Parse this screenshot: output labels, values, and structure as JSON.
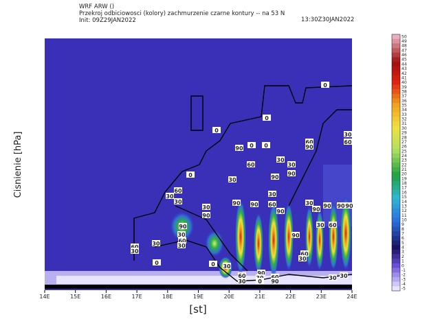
{
  "chart_data": {
    "type": "contour",
    "model": "WRF ARW ()",
    "title": "Przekroj odbiciowosci (kolory) zachmurzenie czarne kontury -- na 53 N",
    "init": "Init: 09Z29JAN2022",
    "valid": "13:30Z30JAN2022",
    "ylabel": "Cisnienie [hPa]",
    "xlabel": "[st]",
    "xlim": [
      14,
      24
    ],
    "xticks": [
      {
        "value": 14,
        "label": "14E"
      },
      {
        "value": 15,
        "label": "15E"
      },
      {
        "value": 16,
        "label": "16E"
      },
      {
        "value": 17,
        "label": "17E"
      },
      {
        "value": 18,
        "label": "18E"
      },
      {
        "value": 19,
        "label": "19E"
      },
      {
        "value": 20,
        "label": "20E"
      },
      {
        "value": 21,
        "label": "21E"
      },
      {
        "value": 22,
        "label": "22E"
      },
      {
        "value": 23,
        "label": "23E"
      },
      {
        "value": 24,
        "label": "24E"
      }
    ],
    "colorbar_ticks": [
      50,
      49,
      48,
      47,
      46,
      45,
      44,
      43,
      42,
      41,
      40,
      39,
      38,
      37,
      36,
      35,
      34,
      33,
      32,
      31,
      30,
      29,
      28,
      27,
      26,
      25,
      24,
      23,
      22,
      21,
      20,
      19,
      18,
      17,
      16,
      15,
      14,
      13,
      12,
      11,
      10,
      9,
      8,
      7,
      6,
      5,
      4,
      3,
      2,
      1,
      0,
      -1,
      -2,
      -3,
      -4,
      -5
    ],
    "contour_labels": [
      0,
      0,
      0,
      0,
      0,
      90,
      0,
      30,
      60,
      30,
      30,
      90,
      90,
      60,
      90,
      30,
      60,
      30,
      30,
      60,
      30,
      90,
      90,
      90,
      30,
      60,
      90,
      30,
      90,
      90,
      90,
      90,
      30,
      60,
      90,
      30,
      60,
      30,
      60,
      30,
      30,
      0,
      90,
      60,
      30,
      0,
      30,
      60,
      30,
      90,
      30,
      0,
      60,
      90,
      30,
      30
    ]
  }
}
